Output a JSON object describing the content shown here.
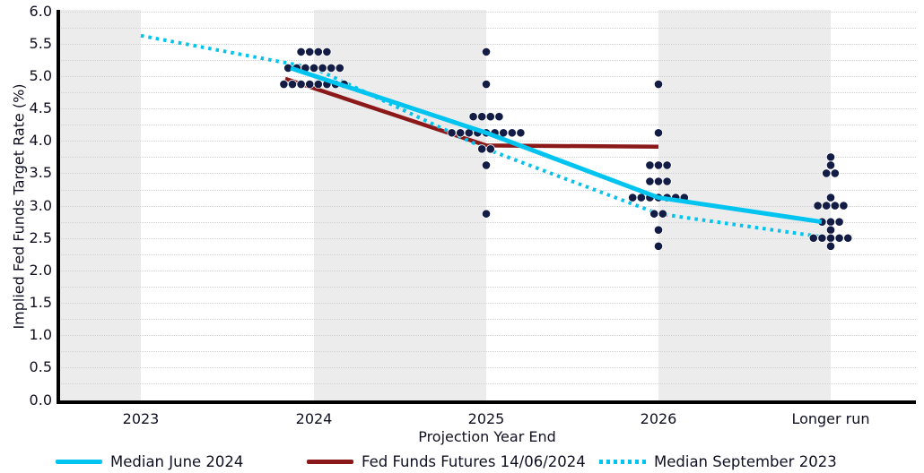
{
  "y_axis": {
    "title": "Implied Fed Funds Target Rate (%)",
    "min": 0.0,
    "max": 6.0,
    "tick_step": 0.5,
    "gridline_step": 0.25,
    "tick_labels": [
      "6.0",
      "5.5",
      "5.0",
      "4.5",
      "4.0",
      "3.5",
      "3.0",
      "2.5",
      "2.0",
      "1.5",
      "1.0",
      "0.5",
      "0.0"
    ]
  },
  "x_axis": {
    "title": "Projection Year End",
    "categories": [
      "2023",
      "2024",
      "2025",
      "2026",
      "Longer run"
    ]
  },
  "legend": {
    "items": [
      {
        "label": "Median June 2024",
        "style": "solid",
        "color": "#00c4f0"
      },
      {
        "label": "Fed Funds Futures 14/06/2024",
        "style": "solid",
        "color": "#8b1919"
      },
      {
        "label": "Median September 2023",
        "style": "dotted",
        "color": "#00c4f0"
      }
    ]
  },
  "colors": {
    "dot": "#131c45",
    "median_june": "#00c4f0",
    "futures": "#8b1919",
    "median_september": "#00c4f0",
    "stripe": "#ececec",
    "gridline": "#d2d2d2",
    "axis": "#000000",
    "text": "#101022"
  },
  "chart_data": {
    "type": "scatter",
    "title": "",
    "xlabel": "Projection Year End",
    "ylabel": "Implied Fed Funds Target Rate (%)",
    "ylim": [
      0.0,
      6.0
    ],
    "grid": "dotted horizontal every 0.25, alternating vertical gray bands",
    "legend_position": "bottom",
    "categories": [
      "2023",
      "2024",
      "2025",
      "2026",
      "Longer run"
    ],
    "dot_plot": [
      {
        "category": "2023",
        "distribution": []
      },
      {
        "category": "2024",
        "distribution": [
          {
            "rate": 5.375,
            "count": 4
          },
          {
            "rate": 5.125,
            "count": 7
          },
          {
            "rate": 4.875,
            "count": 8
          }
        ]
      },
      {
        "category": "2025",
        "distribution": [
          {
            "rate": 5.375,
            "count": 1
          },
          {
            "rate": 4.875,
            "count": 1
          },
          {
            "rate": 4.375,
            "count": 4
          },
          {
            "rate": 4.125,
            "count": 9
          },
          {
            "rate": 3.875,
            "count": 2
          },
          {
            "rate": 3.625,
            "count": 1
          },
          {
            "rate": 2.875,
            "count": 1
          }
        ]
      },
      {
        "category": "2026",
        "distribution": [
          {
            "rate": 4.875,
            "count": 1
          },
          {
            "rate": 4.125,
            "count": 1
          },
          {
            "rate": 3.625,
            "count": 3
          },
          {
            "rate": 3.375,
            "count": 3
          },
          {
            "rate": 3.125,
            "count": 7
          },
          {
            "rate": 2.875,
            "count": 2
          },
          {
            "rate": 2.625,
            "count": 1
          },
          {
            "rate": 2.375,
            "count": 1
          }
        ]
      },
      {
        "category": "Longer run",
        "distribution": [
          {
            "rate": 3.75,
            "count": 1
          },
          {
            "rate": 3.625,
            "count": 1
          },
          {
            "rate": 3.5,
            "count": 2
          },
          {
            "rate": 3.125,
            "count": 1
          },
          {
            "rate": 3.0,
            "count": 4
          },
          {
            "rate": 2.75,
            "count": 3
          },
          {
            "rate": 2.625,
            "count": 1
          },
          {
            "rate": 2.5,
            "count": 5
          },
          {
            "rate": 2.375,
            "count": 1
          }
        ]
      }
    ],
    "series": [
      {
        "name": "Median June 2024",
        "style": "solid",
        "color": "#00c4f0",
        "width": 5,
        "points": [
          {
            "cat": "2024",
            "rate": 5.125
          },
          {
            "cat": "2025",
            "rate": 4.125
          },
          {
            "cat": "2026",
            "rate": 3.125
          },
          {
            "cat": "Longer run",
            "rate": 2.75
          }
        ]
      },
      {
        "name": "Fed Funds Futures 14/06/2024",
        "style": "solid",
        "color": "#8b1919",
        "width": 4.5,
        "points": [
          {
            "cat": "2024",
            "rate": 4.96
          },
          {
            "cat": "2025",
            "rate": 3.93
          },
          {
            "cat": "2026",
            "rate": 3.91
          }
        ]
      },
      {
        "name": "Median September 2023",
        "style": "dotted",
        "color": "#00c4f0",
        "width": 4,
        "points": [
          {
            "cat": "2023",
            "rate": 5.625
          },
          {
            "cat": "2024",
            "rate": 5.125
          },
          {
            "cat": "2025",
            "rate": 3.875
          },
          {
            "cat": "2026",
            "rate": 2.875
          },
          {
            "cat": "Longer run",
            "rate": 2.5
          }
        ]
      }
    ]
  }
}
